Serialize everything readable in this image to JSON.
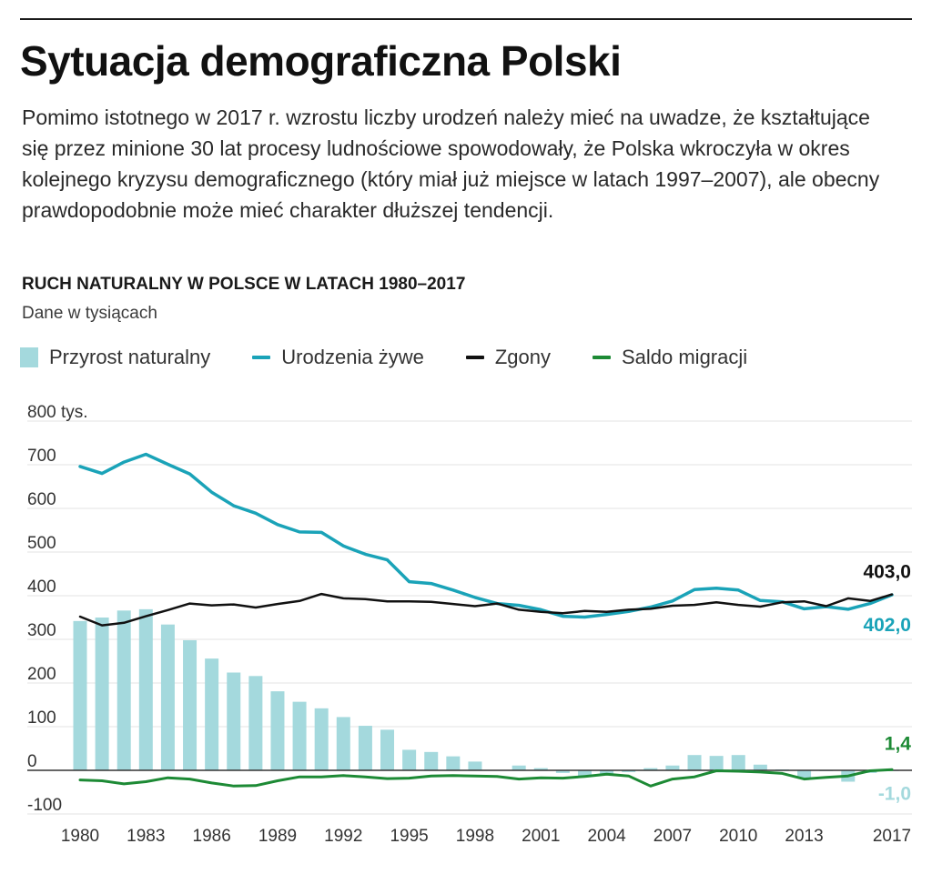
{
  "title": "Sytuacja demograficzna Polski",
  "lead": "Pomimo istotnego w 2017 r. wzrostu liczby urodzeń należy mieć na uwadze, że kształtujące się przez minione 30 lat procesy ludnościowe spowodowały, że Polska wkroczyła w okres kolejnego kryzysu demograficznego (który miał już miejsce w latach 1997–2007), ale obecny prawdopodobnie może mieć charakter dłuższej tendencji.",
  "chart_data": {
    "type": "bar",
    "title": "RUCH NATURALNY W POLSCE W LATACH 1980–2017",
    "subtitle": "Dane w tysiącach",
    "x": [
      1980,
      1981,
      1982,
      1983,
      1984,
      1985,
      1986,
      1987,
      1988,
      1989,
      1990,
      1991,
      1992,
      1993,
      1994,
      1995,
      1996,
      1997,
      1998,
      1999,
      2000,
      2001,
      2002,
      2003,
      2004,
      2005,
      2006,
      2007,
      2008,
      2009,
      2010,
      2011,
      2012,
      2013,
      2014,
      2015,
      2016,
      2017
    ],
    "x_tick_labels": [
      "1980",
      "1983",
      "1986",
      "1989",
      "1992",
      "1995",
      "1998",
      "2001",
      "2004",
      "2007",
      "2010",
      "2013",
      "2017"
    ],
    "y_tick_labels": [
      "800 tys.",
      "700",
      "600",
      "500",
      "400",
      "300",
      "200",
      "100",
      "0",
      "-100"
    ],
    "ylim": [
      -100,
      800
    ],
    "grid": true,
    "legend_position": "top-left",
    "series": [
      {
        "name": "Przyrost naturalny",
        "kind": "bar",
        "color": "#a4d9dd",
        "values": [
          342,
          350,
          366,
          369,
          334,
          298,
          256,
          224,
          216,
          181,
          157,
          142,
          122,
          102,
          93,
          47,
          42,
          32,
          20,
          1,
          11,
          5,
          -6,
          -14,
          -8,
          -4,
          5,
          11,
          35,
          33,
          35,
          13,
          2,
          -18,
          -1,
          -26,
          -6,
          -1
        ]
      },
      {
        "name": "Urodzenia żywe",
        "kind": "line",
        "color": "#1aa3b8",
        "values": [
          696,
          680,
          706,
          724,
          701,
          679,
          637,
          606,
          589,
          563,
          546,
          545,
          514,
          495,
          482,
          432,
          428,
          413,
          396,
          382,
          378,
          368,
          353,
          351,
          357,
          364,
          374,
          388,
          414,
          417,
          413,
          389,
          386,
          370,
          375,
          369,
          382,
          402
        ]
      },
      {
        "name": "Zgony",
        "kind": "line",
        "color": "#111111",
        "values": [
          352,
          332,
          338,
          353,
          367,
          382,
          378,
          380,
          373,
          381,
          388,
          404,
          394,
          392,
          387,
          387,
          386,
          381,
          376,
          382,
          368,
          363,
          360,
          365,
          363,
          368,
          370,
          377,
          379,
          385,
          379,
          375,
          385,
          387,
          376,
          394,
          388,
          403
        ]
      },
      {
        "name": "Saldo migracji",
        "kind": "line",
        "color": "#1d8a35",
        "values": [
          -22,
          -24,
          -31,
          -26,
          -17,
          -20,
          -29,
          -36,
          -35,
          -24,
          -15,
          -15,
          -12,
          -15,
          -19,
          -18,
          -13,
          -12,
          -13,
          -14,
          -20,
          -17,
          -18,
          -14,
          -9,
          -13,
          -36,
          -20,
          -15,
          -1,
          -2,
          -4,
          -7,
          -20,
          -16,
          -13,
          -1,
          1.4
        ]
      }
    ],
    "end_labels": [
      {
        "text": "403,0",
        "series": "Zgony",
        "color": "#111111"
      },
      {
        "text": "402,0",
        "series": "Urodzenia żywe",
        "color": "#1aa3b8"
      },
      {
        "text": "1,4",
        "series": "Saldo migracji",
        "color": "#1d8a35"
      },
      {
        "text": "-1,0",
        "series": "Przyrost naturalny",
        "color": "#a4d9dd"
      }
    ]
  }
}
